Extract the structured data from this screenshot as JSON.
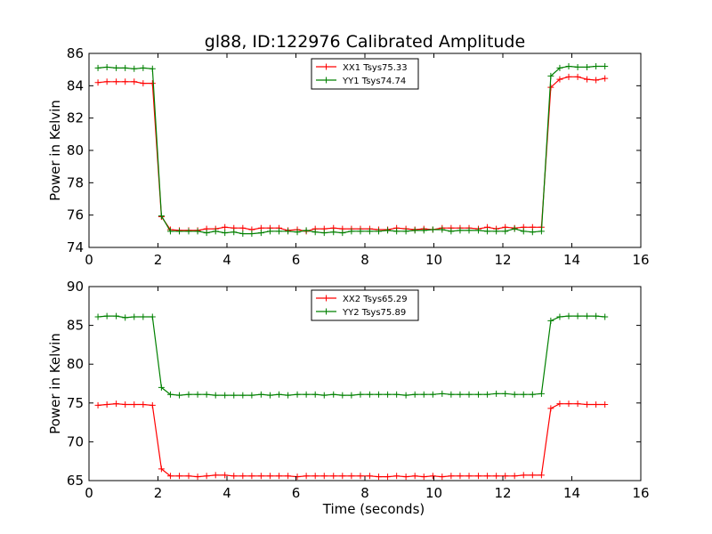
{
  "chart_data": [
    {
      "type": "line",
      "title": "gl88, ID:122976 Calibrated Amplitude",
      "xlabel": "",
      "ylabel": "Power in Kelvin",
      "xlim": [
        0,
        16
      ],
      "ylim": [
        74,
        86
      ],
      "xticks": [
        0,
        2,
        4,
        6,
        8,
        10,
        12,
        14,
        16
      ],
      "yticks": [
        74,
        76,
        78,
        80,
        82,
        84,
        86
      ],
      "legend_position": "top-center",
      "x": [
        0.26,
        0.52,
        0.79,
        1.05,
        1.31,
        1.57,
        1.84,
        2.1,
        2.36,
        2.62,
        2.89,
        3.15,
        3.41,
        3.67,
        3.94,
        4.2,
        4.46,
        4.72,
        4.99,
        5.25,
        5.51,
        5.77,
        6.04,
        6.3,
        6.56,
        6.82,
        7.09,
        7.35,
        7.61,
        7.87,
        8.14,
        8.4,
        8.66,
        8.92,
        9.19,
        9.45,
        9.71,
        9.97,
        10.24,
        10.5,
        10.76,
        11.02,
        11.29,
        11.55,
        11.81,
        12.07,
        12.34,
        12.6,
        12.86,
        13.12,
        13.39,
        13.65,
        13.91,
        14.17,
        14.44,
        14.7,
        14.96
      ],
      "series": [
        {
          "name": "XX1 Tsys75.33",
          "color": "#ff0000",
          "values": [
            84.2,
            84.25,
            84.25,
            84.25,
            84.25,
            84.15,
            84.15,
            75.9,
            75.1,
            75.05,
            75.05,
            75.05,
            75.15,
            75.15,
            75.25,
            75.2,
            75.2,
            75.1,
            75.2,
            75.2,
            75.2,
            75.05,
            75.1,
            75.0,
            75.15,
            75.15,
            75.2,
            75.15,
            75.15,
            75.15,
            75.15,
            75.1,
            75.1,
            75.2,
            75.15,
            75.1,
            75.15,
            75.1,
            75.2,
            75.2,
            75.2,
            75.2,
            75.15,
            75.25,
            75.15,
            75.25,
            75.2,
            75.25,
            75.25,
            75.25,
            83.9,
            84.4,
            84.55,
            84.55,
            84.4,
            84.35,
            84.45
          ]
        },
        {
          "name": "YY1 Tsys74.74",
          "color": "#008000",
          "values": [
            85.1,
            85.15,
            85.1,
            85.1,
            85.05,
            85.1,
            85.05,
            75.95,
            75.0,
            75.0,
            75.0,
            75.0,
            74.9,
            75.0,
            74.9,
            74.95,
            74.85,
            74.85,
            74.9,
            75.0,
            75.0,
            75.0,
            74.95,
            75.05,
            74.95,
            74.9,
            74.95,
            74.9,
            75.0,
            75.0,
            75.0,
            75.0,
            75.05,
            75.0,
            75.0,
            75.05,
            75.05,
            75.1,
            75.1,
            75.0,
            75.05,
            75.05,
            75.05,
            75.0,
            75.0,
            75.0,
            75.15,
            75.0,
            74.95,
            75.0,
            84.6,
            85.1,
            85.2,
            85.15,
            85.15,
            85.2,
            85.2
          ]
        }
      ]
    },
    {
      "type": "line",
      "title": "",
      "xlabel": "Time (seconds)",
      "ylabel": "Power in Kelvin",
      "xlim": [
        0,
        16
      ],
      "ylim": [
        65,
        90
      ],
      "xticks": [
        0,
        2,
        4,
        6,
        8,
        10,
        12,
        14,
        16
      ],
      "yticks": [
        65,
        70,
        75,
        80,
        85,
        90
      ],
      "legend_position": "top-center",
      "x": [
        0.26,
        0.52,
        0.79,
        1.05,
        1.31,
        1.57,
        1.84,
        2.1,
        2.36,
        2.62,
        2.89,
        3.15,
        3.41,
        3.67,
        3.94,
        4.2,
        4.46,
        4.72,
        4.99,
        5.25,
        5.51,
        5.77,
        6.04,
        6.3,
        6.56,
        6.82,
        7.09,
        7.35,
        7.61,
        7.87,
        8.14,
        8.4,
        8.66,
        8.92,
        9.19,
        9.45,
        9.71,
        9.97,
        10.24,
        10.5,
        10.76,
        11.02,
        11.29,
        11.55,
        11.81,
        12.07,
        12.34,
        12.6,
        12.86,
        13.12,
        13.39,
        13.65,
        13.91,
        14.17,
        14.44,
        14.7,
        14.96
      ],
      "series": [
        {
          "name": "XX2 Tsys65.29",
          "color": "#ff0000",
          "values": [
            74.7,
            74.8,
            74.9,
            74.8,
            74.8,
            74.8,
            74.7,
            66.5,
            65.6,
            65.6,
            65.6,
            65.5,
            65.6,
            65.7,
            65.7,
            65.6,
            65.6,
            65.6,
            65.6,
            65.6,
            65.6,
            65.6,
            65.5,
            65.6,
            65.6,
            65.6,
            65.6,
            65.6,
            65.6,
            65.6,
            65.6,
            65.5,
            65.5,
            65.6,
            65.5,
            65.6,
            65.5,
            65.6,
            65.5,
            65.6,
            65.6,
            65.6,
            65.6,
            65.6,
            65.6,
            65.6,
            65.6,
            65.7,
            65.7,
            65.7,
            74.3,
            74.9,
            74.9,
            74.9,
            74.8,
            74.8,
            74.8
          ]
        },
        {
          "name": "YY2 Tsys75.89",
          "color": "#008000",
          "values": [
            86.1,
            86.2,
            86.2,
            86.0,
            86.1,
            86.1,
            86.1,
            77.0,
            76.1,
            76.0,
            76.1,
            76.1,
            76.1,
            76.0,
            76.0,
            76.0,
            76.0,
            76.0,
            76.1,
            76.0,
            76.1,
            76.0,
            76.1,
            76.1,
            76.1,
            76.0,
            76.1,
            76.0,
            76.0,
            76.1,
            76.1,
            76.1,
            76.1,
            76.1,
            76.0,
            76.1,
            76.1,
            76.1,
            76.2,
            76.1,
            76.1,
            76.1,
            76.1,
            76.1,
            76.2,
            76.2,
            76.1,
            76.1,
            76.1,
            76.2,
            85.6,
            86.1,
            86.2,
            86.2,
            86.2,
            86.2,
            86.1
          ]
        }
      ]
    }
  ]
}
